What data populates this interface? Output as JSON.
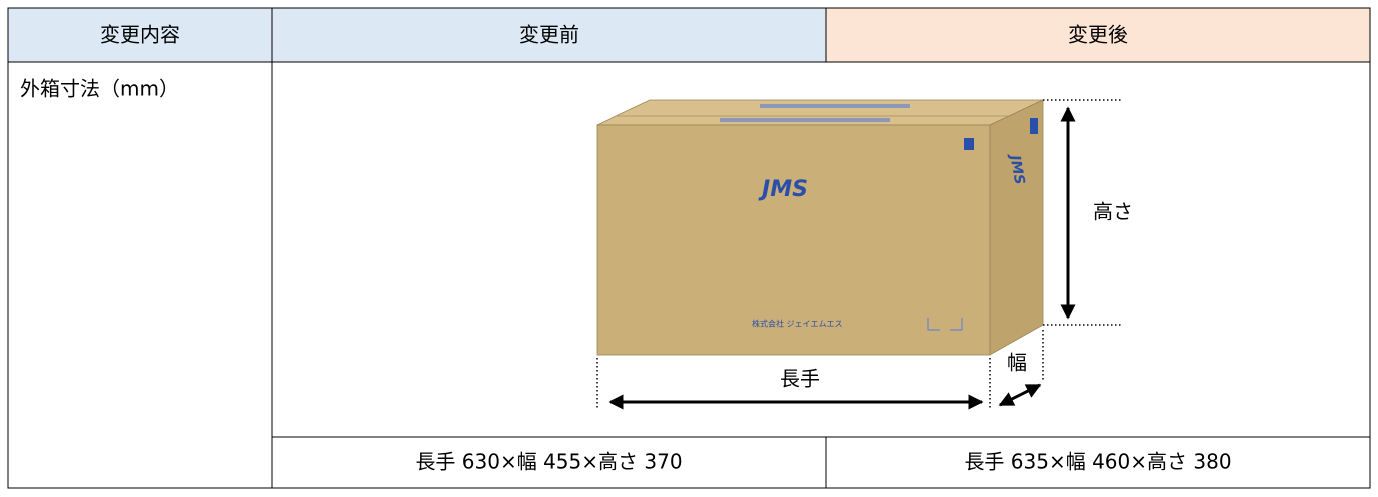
{
  "header": [
    "変更内容",
    "変更前",
    "変更後"
  ],
  "row_label": "外箱寸法（mm）",
  "diagram": {
    "logo": "JMS",
    "maker": "株式会社 ジェイエムエス",
    "length_label": "長手",
    "width_label": "幅",
    "height_label": "高さ"
  },
  "values": [
    "長手 630×幅 455×高さ 370",
    "長手 635×幅 460×高さ 380"
  ]
}
